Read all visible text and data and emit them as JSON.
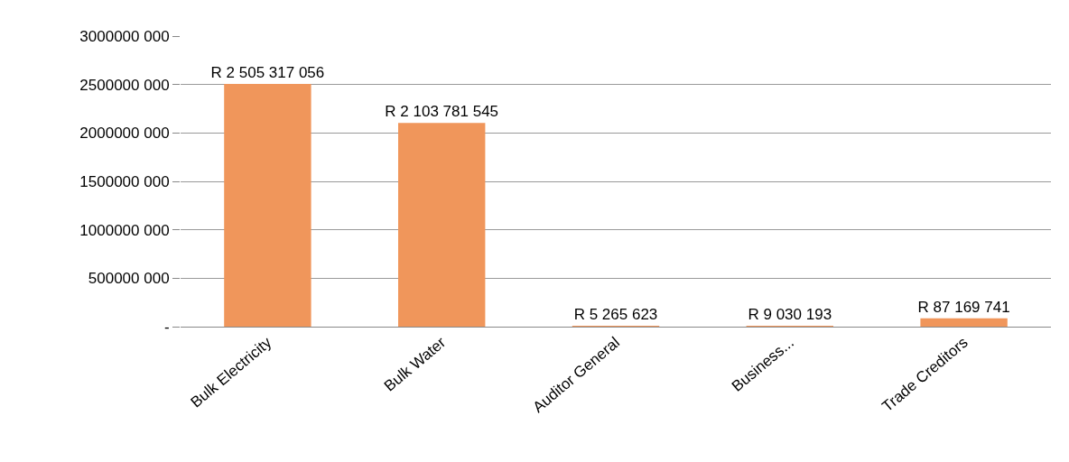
{
  "chart_data": {
    "type": "bar",
    "categories": [
      "Bulk Electricity",
      "Bulk Water",
      "Auditor General",
      "Business...",
      "Trade Creditors"
    ],
    "values": [
      2505317056,
      2103781545,
      5265623,
      9030193,
      87169741
    ],
    "value_labels": [
      "R 2 505 317 056",
      "R 2 103 781 545",
      "R 5 265 623",
      "R 9 030 193",
      "R 87 169 741"
    ],
    "color": "#f0965b",
    "ylim": [
      0,
      3000000000
    ],
    "yticks": [
      {
        "value": 0,
        "label": "-"
      },
      {
        "value": 500000000,
        "label": "500000 000"
      },
      {
        "value": 1000000000,
        "label": "1000000 000"
      },
      {
        "value": 1500000000,
        "label": "1500000 000"
      },
      {
        "value": 2000000000,
        "label": "2000000 000"
      },
      {
        "value": 2500000000,
        "label": "2500000 000"
      },
      {
        "value": 3000000000,
        "label": "3000000 000"
      }
    ],
    "grid": "y"
  }
}
